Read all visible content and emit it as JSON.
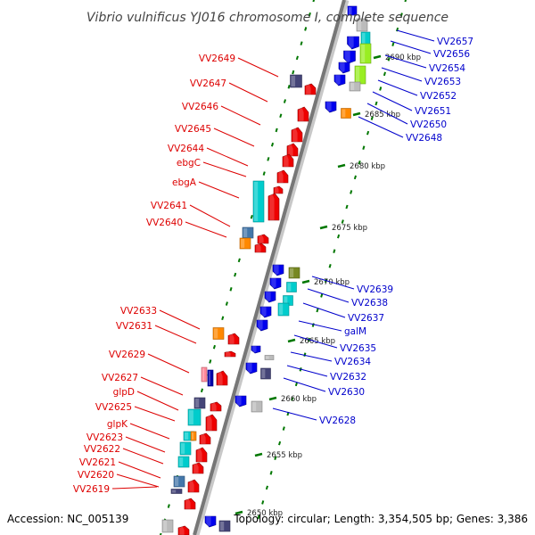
{
  "title": "Vibrio vulnificus YJ016 chromosome I, complete sequence",
  "footer": {
    "accession": "Accession: NC_005139",
    "summary": "Topology: circular; Length: 3,354,505 bp; Genes: 3,386"
  },
  "colors": {
    "forward_label": "#dd0000",
    "reverse_label": "#0000cc",
    "backbone": "#888888",
    "tick": "#007700",
    "orf": "#ee0000",
    "rev_orf": "#0000ee",
    "cyan": "#00cccc",
    "slate": "#444477",
    "orange": "#ff8800",
    "lime": "#99ee22",
    "olive": "#778822",
    "steel": "#4477aa",
    "gray": "#bbbbbb"
  },
  "scale_ticks": [
    {
      "label": "2690 kbp",
      "kbp": 2690
    },
    {
      "label": "2685 kbp",
      "kbp": 2685
    },
    {
      "label": "2680 kbp",
      "kbp": 2680
    },
    {
      "label": "2675 kbp",
      "kbp": 2675
    },
    {
      "label": "2670 kbp",
      "kbp": 2670
    },
    {
      "label": "2665 kbp",
      "kbp": 2665
    },
    {
      "label": "2660 kbp",
      "kbp": 2660
    },
    {
      "label": "2655 kbp",
      "kbp": 2655
    },
    {
      "label": "2650 kbp",
      "kbp": 2650
    }
  ],
  "forward_genes": [
    "VV2649",
    "VV2647",
    "VV2646",
    "VV2645",
    "VV2644",
    "ebgC",
    "ebgA",
    "VV2641",
    "VV2640",
    "VV2633",
    "VV2631",
    "VV2629",
    "VV2627",
    "glpD",
    "VV2625",
    "glpK",
    "VV2623",
    "VV2622",
    "VV2621",
    "VV2620",
    "VV2619"
  ],
  "reverse_genes": [
    "VV2657",
    "VV2656",
    "VV2654",
    "VV2653",
    "VV2652",
    "VV2651",
    "VV2650",
    "VV2648",
    "VV2639",
    "VV2638",
    "VV2637",
    "galM",
    "VV2635",
    "VV2634",
    "VV2632",
    "VV2630",
    "VV2628"
  ]
}
